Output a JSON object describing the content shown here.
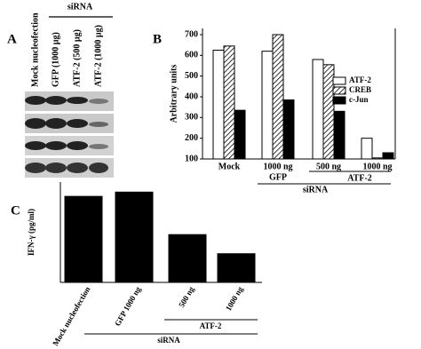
{
  "panel_a": {
    "label": "A",
    "group_label": "siRNA",
    "lanes": [
      "Mock nucleofection",
      "GFP (1000 µg)",
      "ATF-2 (500 µg)",
      "ATF-2 (1000 µg)"
    ]
  },
  "chart_data": [
    {
      "type": "bar",
      "label": "B",
      "y_label": "Arbitrary units",
      "categories": [
        "Mock",
        "1000 ng",
        "500 ng",
        "1000 ng"
      ],
      "group_labels": {
        "gfp": "GFP",
        "atf2": "ATF-2",
        "sirna": "siRNA"
      },
      "series": [
        {
          "name": "ATF-2",
          "color": "#ffffff",
          "values": [
            625,
            620,
            580,
            200
          ]
        },
        {
          "name": "CREB",
          "color": "#ffffff",
          "pattern": "hatch",
          "values": [
            645,
            700,
            555,
            105
          ]
        },
        {
          "name": "c-Jun",
          "color": "#000000",
          "values": [
            335,
            385,
            330,
            130
          ]
        }
      ],
      "ylim": [
        100,
        730
      ],
      "yticks": [
        100,
        200,
        300,
        400,
        500,
        600,
        700
      ],
      "legend": "right",
      "grid": false
    },
    {
      "type": "bar",
      "label": "C",
      "y_label": "IFN-γ (pg/ml)",
      "categories": [
        "Mock nucleofection",
        "GFP 1000 ng",
        "500 ng",
        "1000 ng"
      ],
      "group_labels": {
        "atf2": "ATF-2",
        "sirna": "siRNA"
      },
      "values": [
        1800,
        1890,
        1000,
        600
      ],
      "color": "#000000",
      "ylim": [
        0,
        2100
      ],
      "grid": false
    }
  ]
}
